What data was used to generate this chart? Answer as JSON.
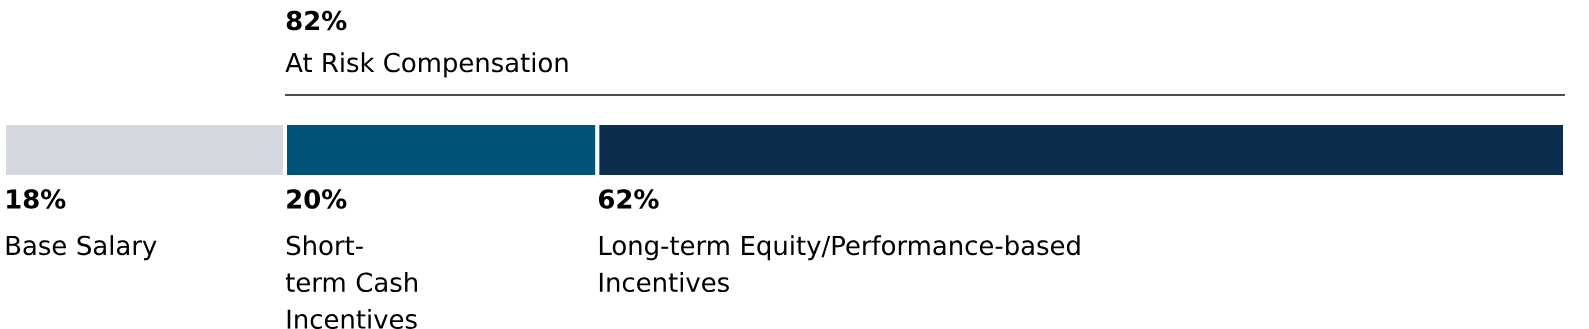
{
  "chart_data": {
    "type": "bar",
    "orientation": "horizontal",
    "stacked": true,
    "categories": [
      null
    ],
    "series": [
      {
        "name": "Base Salary",
        "color": "#d5d8e1",
        "values": [
          18
        ],
        "value_labels": [
          "18%"
        ]
      },
      {
        "name": "Short-term Cash Incentives",
        "color": "#005576",
        "values": [
          20
        ],
        "value_labels": [
          "20%"
        ]
      },
      {
        "name": "Long-term Equity/Performance-based Incentives",
        "color": "#0d2d4f",
        "values": [
          62
        ],
        "value_labels": [
          "62%"
        ]
      }
    ],
    "annotations": [
      "82%",
      "At Risk Compensation"
    ]
  }
}
